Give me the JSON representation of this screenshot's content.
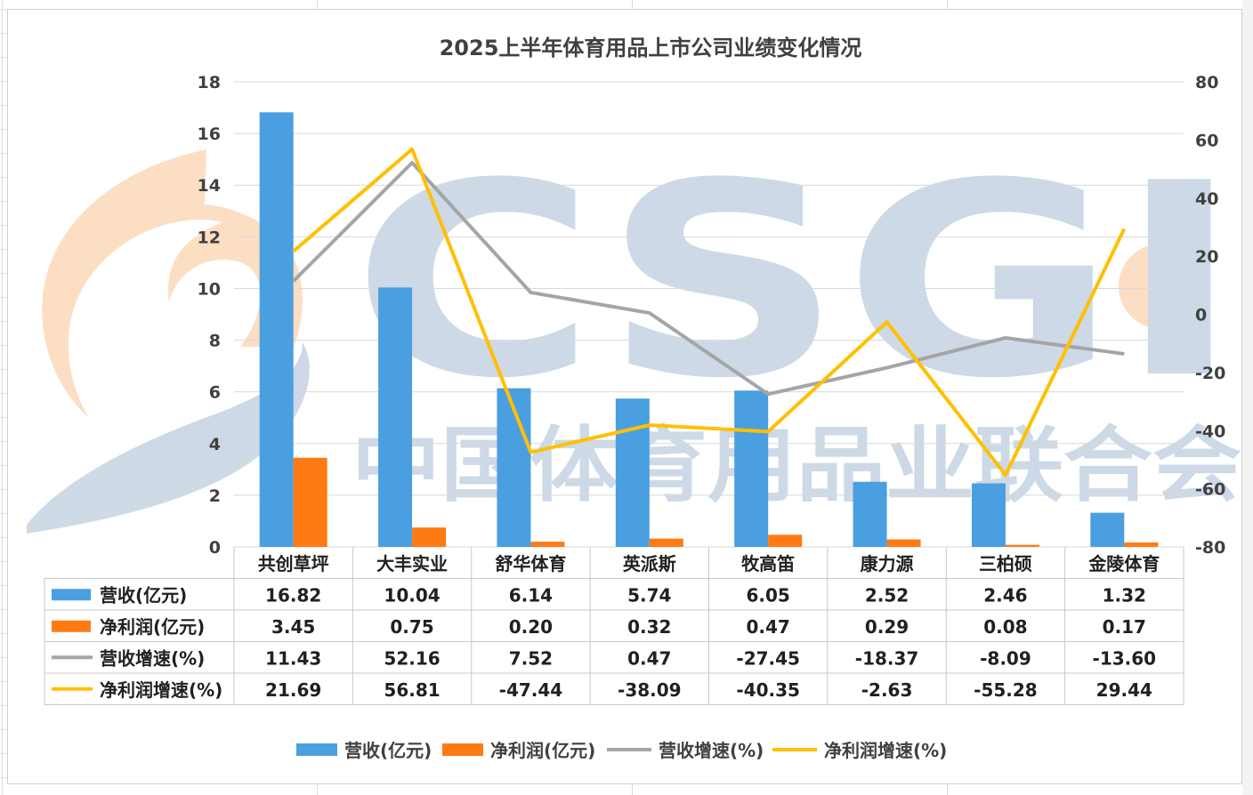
{
  "chart_data": {
    "type": "bar",
    "title": "2025上半年体育用品上市公司业绩变化情况",
    "categories": [
      "共创草坪",
      "大丰实业",
      "舒华体育",
      "英派斯",
      "牧高笛",
      "康力源",
      "三柏硕",
      "金陵体育"
    ],
    "y_left": {
      "range": [
        0,
        18
      ],
      "ticks": [
        "0",
        "2",
        "4",
        "6",
        "8",
        "10",
        "12",
        "14",
        "16",
        "18"
      ]
    },
    "y_right": {
      "range": [
        -80,
        80
      ],
      "ticks": [
        "-80",
        "-60",
        "-40",
        "-20",
        "0",
        "20",
        "40",
        "60",
        "80"
      ]
    },
    "gridlines": true,
    "legend_position": "bottom",
    "series": [
      {
        "name": "营收(亿元)",
        "type": "bar",
        "axis": "left",
        "color": "#4a9fe0",
        "values": [
          16.82,
          10.04,
          6.14,
          5.74,
          6.05,
          2.52,
          2.46,
          1.32
        ],
        "labels": [
          "16.82",
          "10.04",
          "6.14",
          "5.74",
          "6.05",
          "2.52",
          "2.46",
          "1.32"
        ]
      },
      {
        "name": "净利润(亿元)",
        "type": "bar",
        "axis": "left",
        "color": "#ff7a12",
        "values": [
          3.45,
          0.75,
          0.2,
          0.32,
          0.47,
          0.29,
          0.08,
          0.17
        ],
        "labels": [
          "3.45",
          "0.75",
          "0.20",
          "0.32",
          "0.47",
          "0.29",
          "0.08",
          "0.17"
        ]
      },
      {
        "name": "营收增速(%)",
        "type": "line",
        "axis": "right",
        "color": "#a5a5a5",
        "values": [
          11.43,
          52.16,
          7.52,
          0.47,
          -27.45,
          -18.37,
          -8.09,
          -13.6
        ],
        "labels": [
          "11.43",
          "52.16",
          "7.52",
          "0.47",
          "-27.45",
          "-18.37",
          "-8.09",
          "-13.60"
        ]
      },
      {
        "name": "净利润增速(%)",
        "type": "line",
        "axis": "right",
        "color": "#ffc000",
        "values": [
          21.69,
          56.81,
          -47.44,
          -38.09,
          -40.35,
          -2.63,
          -55.28,
          29.44
        ],
        "labels": [
          "21.69",
          "56.81",
          "-47.44",
          "-38.09",
          "-40.35",
          "-2.63",
          "-55.28",
          "29.44"
        ]
      }
    ]
  },
  "watermark": {
    "logo": "CSGI",
    "org": "中国体育用品业联合会",
    "color_primary": "#c5d3e2",
    "color_accent": "#fbd9b9"
  }
}
